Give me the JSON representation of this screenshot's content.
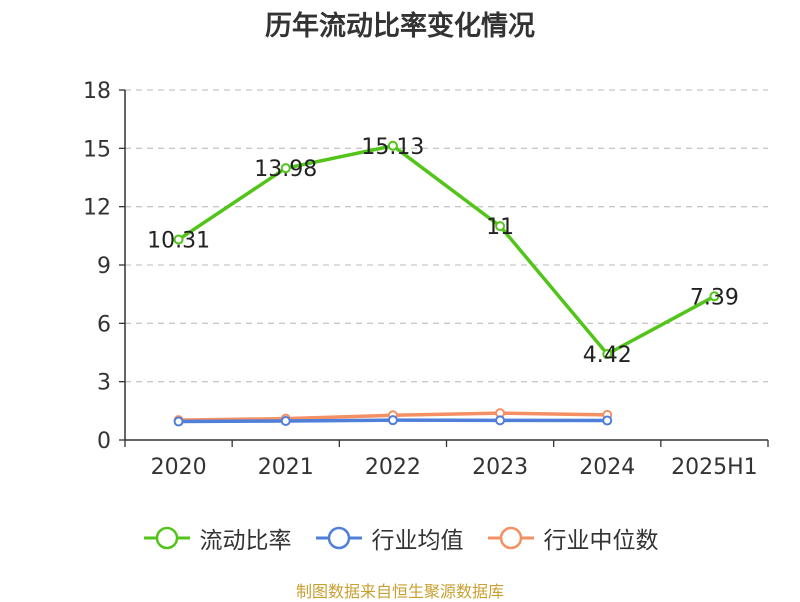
{
  "chart_data": {
    "type": "line",
    "title": "历年流动比率变化情况",
    "categories": [
      "2020",
      "2021",
      "2022",
      "2023",
      "2024",
      "2025H1"
    ],
    "ylim": [
      0,
      18
    ],
    "yticks": [
      0,
      3,
      6,
      9,
      12,
      15,
      18
    ],
    "grid": true,
    "legend_position": "bottom",
    "series": [
      {
        "name": "流动比率",
        "color": "#52c41a",
        "labels": true,
        "values": [
          10.31,
          13.98,
          15.13,
          11,
          4.42,
          7.39
        ]
      },
      {
        "name": "行业均值",
        "color": "#4f7fd8",
        "labels": false,
        "values": [
          0.95,
          0.98,
          1.02,
          1.01,
          1.0,
          null
        ]
      },
      {
        "name": "行业中位数",
        "color": "#f59064",
        "labels": false,
        "values": [
          1.02,
          1.1,
          1.27,
          1.38,
          1.29,
          null
        ]
      }
    ]
  },
  "source_text": "制图数据来自恒生聚源数据库"
}
